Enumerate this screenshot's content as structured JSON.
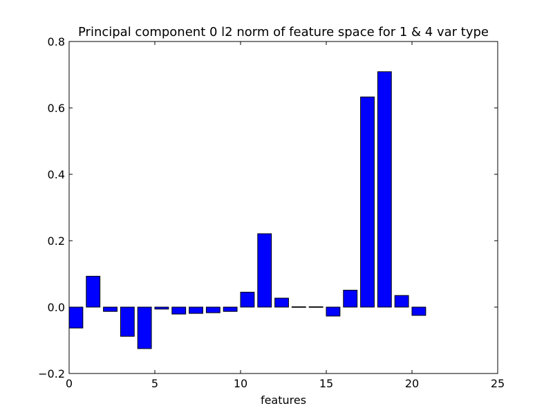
{
  "chart_data": {
    "type": "bar",
    "title": "Principal component 0 l2 norm of feature space for 1 & 4 var type",
    "xlabel": "features",
    "ylabel": "",
    "xlim": [
      0,
      25
    ],
    "ylim": [
      -0.2,
      0.8
    ],
    "xticks": [
      0,
      5,
      10,
      15,
      20,
      25
    ],
    "yticks": [
      -0.2,
      0.0,
      0.2,
      0.4,
      0.6,
      0.8
    ],
    "xtick_labels": [
      "0",
      "5",
      "10",
      "15",
      "20",
      "25"
    ],
    "ytick_labels": [
      "−0.2",
      "0.0",
      "0.2",
      "0.4",
      "0.6",
      "0.8"
    ],
    "bar_width": 0.8,
    "bar_color": "#0000ff",
    "bar_edge_color": "#000000",
    "grid": false,
    "x": [
      0,
      1,
      2,
      3,
      4,
      5,
      6,
      7,
      8,
      9,
      10,
      11,
      12,
      13,
      14,
      15,
      16,
      17,
      18,
      19,
      20
    ],
    "values": [
      -0.063,
      0.093,
      -0.013,
      -0.088,
      -0.125,
      -0.006,
      -0.021,
      -0.019,
      -0.017,
      -0.013,
      0.045,
      0.221,
      0.027,
      0.001,
      0.001,
      -0.027,
      0.051,
      0.633,
      0.709,
      0.035,
      -0.025
    ]
  }
}
